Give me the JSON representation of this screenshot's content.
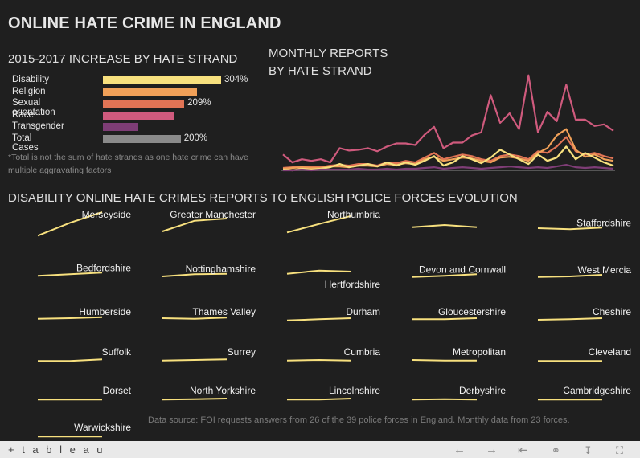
{
  "title": "ONLINE HATE CRIME IN ENGLAND",
  "increase_section": {
    "heading": "2015-2017 INCREASE BY HATE STRAND",
    "note": "*Total is not the sum of hate strands as one hate crime can have multiple aggravating factors"
  },
  "monthly_section": {
    "heading_line1": "MONTHLY REPORTS",
    "heading_line2": "BY HATE STRAND"
  },
  "forces_section": {
    "heading": "DISABILITY ONLINE HATE CRIMES REPORTS TO ENGLISH POLICE FORCES EVOLUTION"
  },
  "source": "Data source: FOI requests answers from 26 of the 39 police forces in England. Monthly data from 23 forces.",
  "footer": {
    "logo": "+ t a b l e a u"
  },
  "colors": {
    "disability": "#f7e07e",
    "religion": "#f0a058",
    "sexual_orientation": "#e17455",
    "race": "#cf5a7d",
    "transgender": "#7e3d76",
    "total": "#8a8a8a"
  },
  "chart_data": [
    {
      "type": "bar",
      "orientation": "horizontal",
      "title": "2015-2017 INCREASE BY HATE STRAND",
      "categories": [
        "Disability",
        "Religion",
        "Sexual orientation",
        "Race",
        "Transgender",
        "Total Cases"
      ],
      "values": [
        304,
        241,
        209,
        182,
        90,
        200
      ],
      "value_labels": [
        "304%",
        "",
        "209%",
        "",
        "",
        "200%"
      ],
      "colors": [
        "#f7e07e",
        "#f0a058",
        "#e17455",
        "#cf5a7d",
        "#7e3d76",
        "#8a8a8a"
      ]
    },
    {
      "type": "line",
      "title": "MONTHLY REPORTS BY HATE STRAND",
      "ylim": [
        0,
        140
      ],
      "x": [
        1,
        2,
        3,
        4,
        5,
        6,
        7,
        8,
        9,
        10,
        11,
        12,
        13,
        14,
        15,
        16,
        17,
        18,
        19,
        20,
        21,
        22,
        23,
        24,
        25,
        26,
        27,
        28,
        29,
        30,
        31,
        32,
        33,
        34,
        35,
        36
      ],
      "series": [
        {
          "color": "#cf5a7d",
          "values": [
            20,
            10,
            14,
            12,
            14,
            10,
            28,
            25,
            26,
            28,
            24,
            30,
            34,
            34,
            32,
            45,
            55,
            28,
            35,
            35,
            44,
            48,
            95,
            60,
            72,
            52,
            120,
            48,
            74,
            62,
            108,
            64,
            64,
            56,
            58,
            50
          ]
        },
        {
          "color": "#e17455",
          "values": [
            3,
            4,
            5,
            4,
            4,
            6,
            7,
            6,
            8,
            8,
            6,
            10,
            9,
            12,
            10,
            16,
            22,
            14,
            17,
            20,
            18,
            14,
            12,
            18,
            20,
            18,
            14,
            24,
            22,
            30,
            42,
            24,
            20,
            22,
            18,
            15
          ]
        },
        {
          "color": "#f0a058",
          "values": [
            2,
            3,
            4,
            3,
            3,
            5,
            5,
            4,
            6,
            6,
            5,
            8,
            7,
            9,
            8,
            14,
            17,
            12,
            14,
            16,
            15,
            12,
            10,
            16,
            17,
            15,
            12,
            22,
            28,
            44,
            52,
            26,
            17,
            20,
            14,
            12
          ]
        },
        {
          "color": "#f7e07e",
          "values": [
            1,
            0,
            2,
            1,
            2,
            4,
            8,
            4,
            6,
            8,
            5,
            10,
            6,
            10,
            7,
            12,
            18,
            6,
            10,
            18,
            14,
            9,
            16,
            26,
            20,
            14,
            8,
            20,
            12,
            16,
            30,
            14,
            22,
            16,
            10,
            6
          ]
        },
        {
          "color": "#7e3d76",
          "values": [
            0,
            0,
            1,
            0,
            1,
            1,
            1,
            1,
            2,
            1,
            1,
            2,
            1,
            2,
            2,
            3,
            4,
            2,
            3,
            4,
            3,
            2,
            3,
            4,
            5,
            4,
            3,
            4,
            3,
            5,
            7,
            4,
            3,
            4,
            3,
            2
          ]
        }
      ]
    },
    {
      "type": "line",
      "title": "DISABILITY ONLINE HATE CRIMES REPORTS TO ENGLISH POLICE FORCES EVOLUTION",
      "x": [
        "2015",
        "2016",
        "2017"
      ],
      "series": [
        {
          "name": "Merseyside",
          "values": [
            10,
            34,
            54
          ]
        },
        {
          "name": "Greater Manchester",
          "values": [
            18,
            38,
            42
          ]
        },
        {
          "name": "Northumbria",
          "values": [
            16,
            32,
            47
          ]
        },
        {
          "name": "",
          "values": [
            26,
            30,
            26
          ]
        },
        {
          "name": "Staffordshire",
          "values": [
            24,
            22,
            25
          ]
        },
        {
          "name": "Bedfordshire",
          "values": [
            10,
            13,
            16
          ]
        },
        {
          "name": "Nottinghamshire",
          "values": [
            9,
            13,
            14
          ]
        },
        {
          "name": "Hertfordshire",
          "values": [
            14,
            20,
            18
          ]
        },
        {
          "name": "Devon and Cornwall",
          "values": [
            8,
            10,
            13
          ]
        },
        {
          "name": "West Mercia",
          "values": [
            8,
            9,
            12
          ]
        },
        {
          "name": "Humberside",
          "values": [
            5,
            6,
            8
          ]
        },
        {
          "name": "Thames Valley",
          "values": [
            6,
            5,
            7
          ]
        },
        {
          "name": "Durham",
          "values": [
            2,
            4,
            6
          ]
        },
        {
          "name": "Gloucestershire",
          "values": [
            4,
            4,
            6
          ]
        },
        {
          "name": "Cheshire",
          "values": [
            3,
            4,
            6
          ]
        },
        {
          "name": "Suffolk",
          "values": [
            1,
            1,
            4
          ]
        },
        {
          "name": "Surrey",
          "values": [
            2,
            3,
            4
          ]
        },
        {
          "name": "Cumbria",
          "values": [
            2,
            3,
            2
          ]
        },
        {
          "name": "Metropolitan",
          "values": [
            3,
            2,
            2
          ]
        },
        {
          "name": "Cleveland",
          "values": [
            1,
            1,
            1
          ]
        },
        {
          "name": "Dorset",
          "values": [
            1,
            1,
            1
          ]
        },
        {
          "name": "North Yorkshire",
          "values": [
            1,
            2,
            3
          ]
        },
        {
          "name": "Lincolnshire",
          "values": [
            1,
            1,
            3
          ]
        },
        {
          "name": "Derbyshire",
          "values": [
            1,
            2,
            1
          ]
        },
        {
          "name": "Cambridgeshire",
          "values": [
            1,
            1,
            1
          ]
        },
        {
          "name": "Warwickshire",
          "values": [
            1,
            1,
            1
          ]
        }
      ]
    }
  ]
}
